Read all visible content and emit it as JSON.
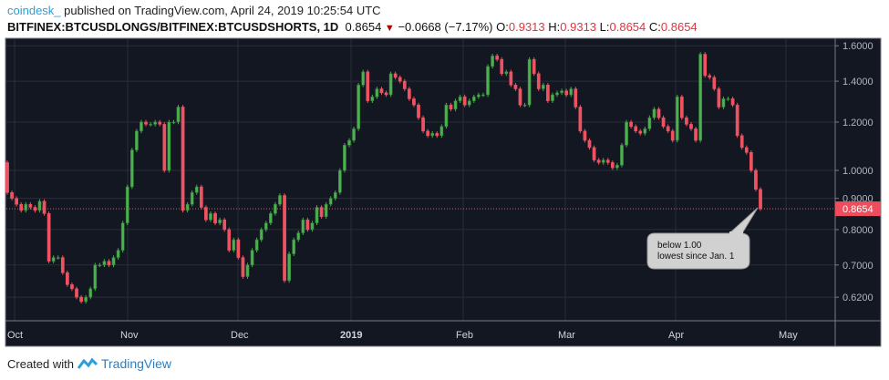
{
  "header": {
    "user": "coindesk_",
    "published": "published on TradingView.com, April 24, 2019 10:25:54 UTC",
    "symbol": "BITFINEX:BTCUSDLONGS/BITFINEX:BTCUSDSHORTS, 1D",
    "last": "0.8654",
    "change": "−0.0668 (−7.17%)",
    "o_label": "O:",
    "o": "0.9313",
    "h_label": "H:",
    "h": "0.9313",
    "l_label": "L:",
    "l": "0.8654",
    "c_label": "C:",
    "c": "0.8654"
  },
  "footer": {
    "created": "Created with",
    "brand": "TradingView"
  },
  "annotation": {
    "line1": "below 1.00",
    "line2": "lowest since Jan. 1"
  },
  "colors": {
    "background": "#131722",
    "up": "#4caf50",
    "down": "#ef5361",
    "grid": "#2a2e39",
    "price_label": "#ef4c5c"
  },
  "chart_data": {
    "type": "candlestick",
    "scale": "log",
    "interval": "1D",
    "ylim": [
      0.58,
      1.62
    ],
    "y_ticks": [
      "1.6000",
      "1.4000",
      "1.2000",
      "1.0000",
      "0.9000",
      "0.8000",
      "0.7000",
      "0.6200"
    ],
    "y_tick_values": [
      1.6,
      1.4,
      1.2,
      1.0,
      0.9,
      0.8,
      0.7,
      0.62
    ],
    "x_ticks": [
      "Oct",
      "Nov",
      "Dec",
      "2019",
      "Feb",
      "Mar",
      "Apr",
      "May"
    ],
    "last_price": "0.8654",
    "grid": true,
    "first_open": 1.03,
    "closes": [
      0.92,
      0.9,
      0.88,
      0.86,
      0.88,
      0.87,
      0.86,
      0.89,
      0.85,
      0.71,
      0.72,
      0.72,
      0.68,
      0.65,
      0.64,
      0.62,
      0.61,
      0.62,
      0.64,
      0.7,
      0.7,
      0.71,
      0.7,
      0.72,
      0.74,
      0.82,
      0.94,
      1.08,
      1.16,
      1.2,
      1.19,
      1.19,
      1.2,
      1.19,
      1.0,
      1.2,
      1.2,
      1.27,
      0.86,
      0.88,
      0.92,
      0.94,
      0.87,
      0.83,
      0.85,
      0.82,
      0.83,
      0.8,
      0.74,
      0.77,
      0.72,
      0.67,
      0.7,
      0.74,
      0.77,
      0.8,
      0.82,
      0.85,
      0.88,
      0.91,
      0.66,
      0.73,
      0.77,
      0.79,
      0.83,
      0.8,
      0.82,
      0.87,
      0.84,
      0.88,
      0.9,
      0.92,
      1.0,
      1.1,
      1.12,
      1.17,
      1.38,
      1.45,
      1.3,
      1.32,
      1.36,
      1.34,
      1.33,
      1.44,
      1.42,
      1.4,
      1.36,
      1.31,
      1.28,
      1.22,
      1.16,
      1.14,
      1.15,
      1.14,
      1.18,
      1.28,
      1.26,
      1.3,
      1.32,
      1.28,
      1.3,
      1.32,
      1.33,
      1.33,
      1.48,
      1.54,
      1.52,
      1.44,
      1.45,
      1.38,
      1.36,
      1.28,
      1.28,
      1.52,
      1.44,
      1.36,
      1.38,
      1.3,
      1.33,
      1.34,
      1.35,
      1.33,
      1.36,
      1.27,
      1.16,
      1.12,
      1.09,
      1.04,
      1.03,
      1.04,
      1.03,
      1.01,
      1.02,
      1.1,
      1.2,
      1.18,
      1.16,
      1.15,
      1.17,
      1.22,
      1.26,
      1.22,
      1.18,
      1.16,
      1.12,
      1.32,
      1.22,
      1.19,
      1.17,
      1.12,
      1.55,
      1.43,
      1.42,
      1.36,
      1.27,
      1.31,
      1.31,
      1.28,
      1.14,
      1.09,
      1.07,
      1.0,
      0.9313,
      0.8654
    ]
  }
}
